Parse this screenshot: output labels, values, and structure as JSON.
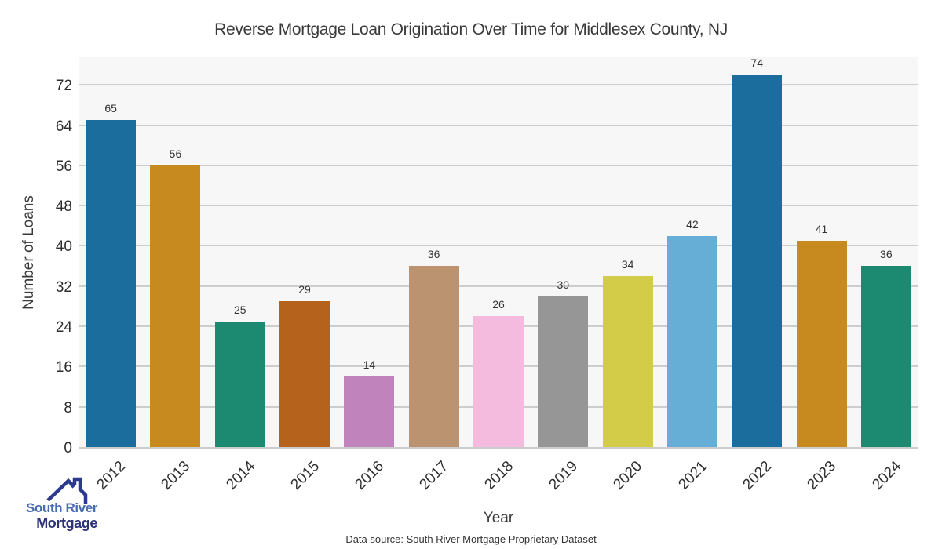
{
  "title": "Reverse Mortgage Loan Origination Over Time for Middlesex County, NJ",
  "chart_data": {
    "type": "bar",
    "categories": [
      "2012",
      "2013",
      "2014",
      "2015",
      "2016",
      "2017",
      "2018",
      "2019",
      "2020",
      "2021",
      "2022",
      "2023",
      "2024"
    ],
    "values": [
      65,
      56,
      25,
      29,
      14,
      36,
      26,
      30,
      34,
      42,
      74,
      41,
      36
    ],
    "bar_colors": [
      "#1b6d9e",
      "#c68a1f",
      "#1b8a70",
      "#b5621d",
      "#c083bb",
      "#bb9370",
      "#f4bbdf",
      "#969696",
      "#d3cc49",
      "#67aed6",
      "#1b6d9e",
      "#c68a1f",
      "#1b8a70"
    ],
    "title": "Reverse Mortgage Loan Origination Over Time for Middlesex County, NJ",
    "xlabel": "Year",
    "ylabel": "Number of Loans",
    "ylim": [
      0,
      77.8
    ],
    "yticks": [
      0,
      8,
      16,
      24,
      32,
      40,
      48,
      56,
      64,
      72
    ],
    "grid": "horizontal gridlines on",
    "legend": "none",
    "plot_bg_color": "#f7f7f7",
    "gridline_color": "#cdcdcd",
    "value_labels_shown": true
  },
  "footer": {
    "source_note": "Data source: South River Mortgage Proprietary Dataset"
  },
  "logo": {
    "line1": "South River",
    "line2": "Mortgage",
    "line1_color": "#4a6cb3",
    "line2_color": "#2b3277",
    "roof_color": "#2b3a8f"
  }
}
